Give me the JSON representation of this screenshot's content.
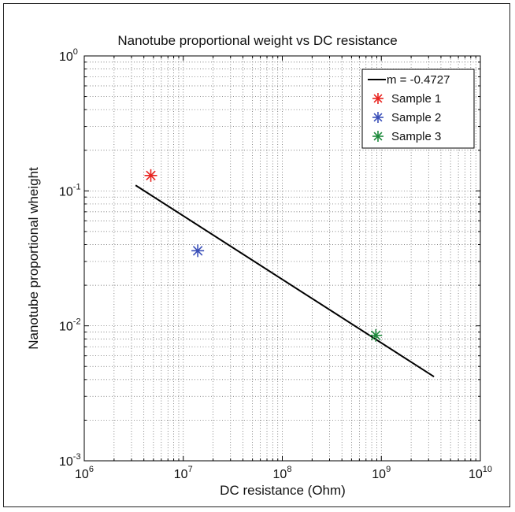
{
  "chart_data": {
    "type": "scatter",
    "title": "Nanotube proportional weight vs DC resistance",
    "xlabel": "DC resistance (Ohm)",
    "ylabel": "Nanotube proportional wheight",
    "xscale": "log",
    "yscale": "log",
    "xlim": [
      1000000,
      10000000000
    ],
    "ylim": [
      0.001,
      1
    ],
    "x_ticks": [
      {
        "value": 1000000,
        "base": "10",
        "exp": "6"
      },
      {
        "value": 10000000,
        "base": "10",
        "exp": "7"
      },
      {
        "value": 100000000,
        "base": "10",
        "exp": "8"
      },
      {
        "value": 1000000000,
        "base": "10",
        "exp": "9"
      },
      {
        "value": 10000000000,
        "base": "10",
        "exp": "10"
      }
    ],
    "y_ticks": [
      {
        "value": 0.001,
        "base": "10",
        "exp": "-3"
      },
      {
        "value": 0.01,
        "base": "10",
        "exp": "-2"
      },
      {
        "value": 0.1,
        "base": "10",
        "exp": "-1"
      },
      {
        "value": 1,
        "base": "10",
        "exp": "0"
      }
    ],
    "grid": true,
    "legend_position": "top-right",
    "series": [
      {
        "name": "m = -0.4727",
        "kind": "line",
        "color": "#000000",
        "x": [
          3300000,
          3400000000
        ],
        "y": [
          0.11,
          0.0042
        ]
      },
      {
        "name": "Sample 1",
        "kind": "scatter",
        "marker": "asterisk",
        "color": "#e8231f",
        "x": [
          4700000
        ],
        "y": [
          0.13
        ]
      },
      {
        "name": "Sample 2",
        "kind": "scatter",
        "marker": "asterisk",
        "color": "#3a4fb8",
        "x": [
          14000000
        ],
        "y": [
          0.036
        ]
      },
      {
        "name": "Sample 3",
        "kind": "scatter",
        "marker": "asterisk",
        "color": "#1e8a3c",
        "x": [
          880000000
        ],
        "y": [
          0.0085
        ]
      }
    ]
  }
}
